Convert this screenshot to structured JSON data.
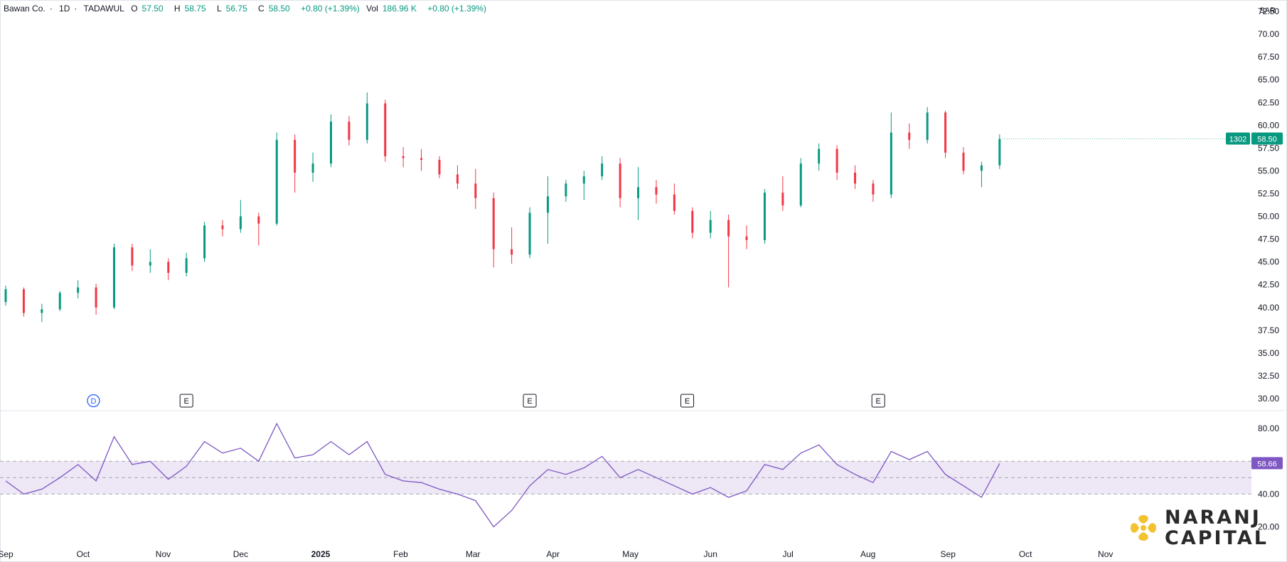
{
  "legend": {
    "symbol": "Bawan Co.",
    "sep1": "·",
    "interval": "1D",
    "sep2": "·",
    "exchange": "TADAWUL",
    "open_label": "O",
    "open": "57.50",
    "high_label": "H",
    "high": "58.75",
    "low_label": "L",
    "low": "56.75",
    "close_label": "C",
    "close": "58.50",
    "change": "+0.80 (+1.39%)",
    "vol_label": "Vol",
    "vol": "186.96 K",
    "vol_change": "+0.80 (+1.39%)"
  },
  "currency": "SAR",
  "price_tag": {
    "symbol_code": "1302",
    "price": "58.50"
  },
  "rsi_tag": "58.66",
  "watermark": {
    "line1": "NARANJ",
    "line2": "CAPITAL"
  },
  "colors": {
    "up": "#089981",
    "down": "#f23645",
    "rsi": "#7e57c2",
    "band": "#ede7f6"
  },
  "chart_data": [
    {
      "type": "candlestick",
      "ylim": [
        28.75,
        73.75
      ],
      "y_ticks": [
        "72.50",
        "70.00",
        "67.50",
        "65.00",
        "62.50",
        "60.00",
        "57.50",
        "55.00",
        "52.50",
        "50.00",
        "47.50",
        "45.00",
        "42.50",
        "40.00",
        "37.50",
        "35.00",
        "32.50",
        "30.00"
      ],
      "x_ticks": [
        "Sep",
        "Oct",
        "Nov",
        "Dec",
        "2025",
        "Feb",
        "Mar",
        "Apr",
        "May",
        "Jun",
        "Jul",
        "Aug",
        "Sep",
        "Oct",
        "Nov"
      ],
      "events": [
        "D",
        "E",
        "E",
        "E",
        "E"
      ],
      "series": [
        {
          "x": "2024-09-01",
          "ohlc": [
            40.6,
            42.4,
            40.2,
            42.0
          ]
        },
        {
          "x": "2024-09-08",
          "ohlc": [
            42.0,
            42.2,
            39.0,
            39.4
          ]
        },
        {
          "x": "2024-09-15",
          "ohlc": [
            39.4,
            40.4,
            38.4,
            39.8
          ]
        },
        {
          "x": "2024-09-22",
          "ohlc": [
            39.8,
            41.8,
            39.6,
            41.6
          ]
        },
        {
          "x": "2024-09-29",
          "ohlc": [
            41.6,
            43.0,
            41.0,
            42.2
          ]
        },
        {
          "x": "2024-10-06",
          "ohlc": [
            42.2,
            42.6,
            39.2,
            40.0
          ]
        },
        {
          "x": "2024-10-13",
          "ohlc": [
            40.0,
            47.0,
            39.8,
            46.6
          ]
        },
        {
          "x": "2024-10-20",
          "ohlc": [
            46.6,
            47.0,
            44.0,
            44.6
          ]
        },
        {
          "x": "2024-10-27",
          "ohlc": [
            44.6,
            46.4,
            43.8,
            45.0
          ]
        },
        {
          "x": "2024-11-03",
          "ohlc": [
            45.0,
            45.4,
            43.0,
            43.8
          ]
        },
        {
          "x": "2024-11-10",
          "ohlc": [
            43.8,
            46.0,
            43.4,
            45.4
          ]
        },
        {
          "x": "2024-11-17",
          "ohlc": [
            45.4,
            49.4,
            45.0,
            49.0
          ]
        },
        {
          "x": "2024-11-24",
          "ohlc": [
            49.0,
            49.6,
            47.8,
            48.6
          ]
        },
        {
          "x": "2024-12-01",
          "ohlc": [
            48.6,
            51.8,
            48.2,
            50.0
          ]
        },
        {
          "x": "2024-12-08",
          "ohlc": [
            50.0,
            50.4,
            46.8,
            49.2
          ]
        },
        {
          "x": "2024-12-15",
          "ohlc": [
            49.2,
            59.2,
            49.0,
            58.4
          ]
        },
        {
          "x": "2024-12-22",
          "ohlc": [
            58.4,
            59.0,
            52.6,
            54.8
          ]
        },
        {
          "x": "2024-12-29",
          "ohlc": [
            54.8,
            57.0,
            53.8,
            55.8
          ]
        },
        {
          "x": "2025-01-05",
          "ohlc": [
            55.8,
            61.2,
            55.4,
            60.4
          ]
        },
        {
          "x": "2025-01-12",
          "ohlc": [
            60.4,
            61.0,
            57.8,
            58.4
          ]
        },
        {
          "x": "2025-01-19",
          "ohlc": [
            58.4,
            63.6,
            58.0,
            62.4
          ]
        },
        {
          "x": "2025-01-26",
          "ohlc": [
            62.4,
            62.8,
            56.0,
            56.6
          ]
        },
        {
          "x": "2025-02-02",
          "ohlc": [
            56.6,
            57.6,
            55.4,
            56.4
          ]
        },
        {
          "x": "2025-02-09",
          "ohlc": [
            56.4,
            57.4,
            55.0,
            56.2
          ]
        },
        {
          "x": "2025-02-16",
          "ohlc": [
            56.2,
            56.6,
            54.2,
            54.6
          ]
        },
        {
          "x": "2025-02-23",
          "ohlc": [
            54.6,
            55.6,
            53.0,
            53.6
          ]
        },
        {
          "x": "2025-03-02",
          "ohlc": [
            53.6,
            55.2,
            50.8,
            52.0
          ]
        },
        {
          "x": "2025-03-09",
          "ohlc": [
            52.0,
            52.6,
            44.4,
            46.4
          ]
        },
        {
          "x": "2025-03-16",
          "ohlc": [
            46.4,
            48.8,
            44.8,
            45.8
          ]
        },
        {
          "x": "2025-03-23",
          "ohlc": [
            45.8,
            51.0,
            45.4,
            50.4
          ]
        },
        {
          "x": "2025-03-30",
          "ohlc": [
            50.4,
            54.4,
            47.0,
            52.2
          ]
        },
        {
          "x": "2025-04-06",
          "ohlc": [
            52.2,
            54.0,
            51.6,
            53.6
          ]
        },
        {
          "x": "2025-04-13",
          "ohlc": [
            53.6,
            55.0,
            51.8,
            54.4
          ]
        },
        {
          "x": "2025-04-20",
          "ohlc": [
            54.4,
            56.6,
            54.0,
            55.8
          ]
        },
        {
          "x": "2025-04-27",
          "ohlc": [
            55.8,
            56.4,
            51.0,
            52.0
          ]
        },
        {
          "x": "2025-05-04",
          "ohlc": [
            52.0,
            55.4,
            49.6,
            53.2
          ]
        },
        {
          "x": "2025-05-11",
          "ohlc": [
            53.2,
            54.0,
            51.4,
            52.4
          ]
        },
        {
          "x": "2025-05-18",
          "ohlc": [
            52.4,
            53.6,
            50.2,
            50.6
          ]
        },
        {
          "x": "2025-05-25",
          "ohlc": [
            50.6,
            51.0,
            47.6,
            48.2
          ]
        },
        {
          "x": "2025-06-01",
          "ohlc": [
            48.2,
            50.6,
            47.6,
            49.6
          ]
        },
        {
          "x": "2025-06-08",
          "ohlc": [
            49.6,
            50.2,
            42.2,
            47.8
          ]
        },
        {
          "x": "2025-06-15",
          "ohlc": [
            47.8,
            49.0,
            46.4,
            47.4
          ]
        },
        {
          "x": "2025-06-22",
          "ohlc": [
            47.4,
            53.0,
            47.0,
            52.6
          ]
        },
        {
          "x": "2025-06-29",
          "ohlc": [
            52.6,
            54.4,
            50.6,
            51.2
          ]
        },
        {
          "x": "2025-07-06",
          "ohlc": [
            51.2,
            56.4,
            51.0,
            55.8
          ]
        },
        {
          "x": "2025-07-13",
          "ohlc": [
            55.8,
            58.0,
            55.0,
            57.4
          ]
        },
        {
          "x": "2025-07-20",
          "ohlc": [
            57.4,
            57.8,
            54.0,
            54.8
          ]
        },
        {
          "x": "2025-07-27",
          "ohlc": [
            54.8,
            55.6,
            53.0,
            53.6
          ]
        },
        {
          "x": "2025-08-03",
          "ohlc": [
            53.6,
            54.0,
            51.6,
            52.4
          ]
        },
        {
          "x": "2025-08-10",
          "ohlc": [
            52.4,
            61.4,
            52.0,
            59.2
          ]
        },
        {
          "x": "2025-08-17",
          "ohlc": [
            59.2,
            60.2,
            57.4,
            58.4
          ]
        },
        {
          "x": "2025-08-24",
          "ohlc": [
            58.4,
            62.0,
            58.0,
            61.4
          ]
        },
        {
          "x": "2025-08-31",
          "ohlc": [
            61.4,
            61.6,
            56.4,
            57.0
          ]
        },
        {
          "x": "2025-09-07",
          "ohlc": [
            57.0,
            57.6,
            54.6,
            55.0
          ]
        },
        {
          "x": "2025-09-14",
          "ohlc": [
            55.0,
            56.0,
            53.2,
            55.6
          ]
        },
        {
          "x": "2025-09-21",
          "ohlc": [
            55.6,
            59.0,
            55.2,
            58.5
          ]
        }
      ]
    },
    {
      "type": "line",
      "indicator": "RSI",
      "ylim": [
        12,
        90
      ],
      "y_ticks": [
        "80.00",
        "40.00",
        "20.00"
      ],
      "bands": [
        40,
        50,
        60
      ],
      "series": [
        {
          "x": "2024-09-01",
          "y": 48
        },
        {
          "x": "2024-09-08",
          "y": 40
        },
        {
          "x": "2024-09-15",
          "y": 43
        },
        {
          "x": "2024-09-22",
          "y": 50
        },
        {
          "x": "2024-09-29",
          "y": 58
        },
        {
          "x": "2024-10-06",
          "y": 48
        },
        {
          "x": "2024-10-13",
          "y": 75
        },
        {
          "x": "2024-10-20",
          "y": 58
        },
        {
          "x": "2024-10-27",
          "y": 60
        },
        {
          "x": "2024-11-03",
          "y": 49
        },
        {
          "x": "2024-11-10",
          "y": 57
        },
        {
          "x": "2024-11-17",
          "y": 72
        },
        {
          "x": "2024-11-24",
          "y": 65
        },
        {
          "x": "2024-12-01",
          "y": 68
        },
        {
          "x": "2024-12-08",
          "y": 60
        },
        {
          "x": "2024-12-15",
          "y": 83
        },
        {
          "x": "2024-12-22",
          "y": 62
        },
        {
          "x": "2024-12-29",
          "y": 64
        },
        {
          "x": "2025-01-05",
          "y": 72
        },
        {
          "x": "2025-01-12",
          "y": 64
        },
        {
          "x": "2025-01-19",
          "y": 72
        },
        {
          "x": "2025-01-26",
          "y": 52
        },
        {
          "x": "2025-02-02",
          "y": 48
        },
        {
          "x": "2025-02-09",
          "y": 47
        },
        {
          "x": "2025-02-16",
          "y": 43
        },
        {
          "x": "2025-02-23",
          "y": 40
        },
        {
          "x": "2025-03-02",
          "y": 36
        },
        {
          "x": "2025-03-09",
          "y": 20
        },
        {
          "x": "2025-03-16",
          "y": 30
        },
        {
          "x": "2025-03-23",
          "y": 45
        },
        {
          "x": "2025-03-30",
          "y": 55
        },
        {
          "x": "2025-04-06",
          "y": 52
        },
        {
          "x": "2025-04-13",
          "y": 56
        },
        {
          "x": "2025-04-20",
          "y": 63
        },
        {
          "x": "2025-04-27",
          "y": 50
        },
        {
          "x": "2025-05-04",
          "y": 55
        },
        {
          "x": "2025-05-11",
          "y": 50
        },
        {
          "x": "2025-05-18",
          "y": 45
        },
        {
          "x": "2025-05-25",
          "y": 40
        },
        {
          "x": "2025-06-01",
          "y": 44
        },
        {
          "x": "2025-06-08",
          "y": 38
        },
        {
          "x": "2025-06-15",
          "y": 42
        },
        {
          "x": "2025-06-22",
          "y": 58
        },
        {
          "x": "2025-06-29",
          "y": 55
        },
        {
          "x": "2025-07-06",
          "y": 65
        },
        {
          "x": "2025-07-13",
          "y": 70
        },
        {
          "x": "2025-07-20",
          "y": 58
        },
        {
          "x": "2025-07-27",
          "y": 52
        },
        {
          "x": "2025-08-03",
          "y": 47
        },
        {
          "x": "2025-08-10",
          "y": 66
        },
        {
          "x": "2025-08-17",
          "y": 61
        },
        {
          "x": "2025-08-24",
          "y": 66
        },
        {
          "x": "2025-08-31",
          "y": 52
        },
        {
          "x": "2025-09-07",
          "y": 45
        },
        {
          "x": "2025-09-14",
          "y": 38
        },
        {
          "x": "2025-09-21",
          "y": 58.66
        }
      ]
    }
  ]
}
